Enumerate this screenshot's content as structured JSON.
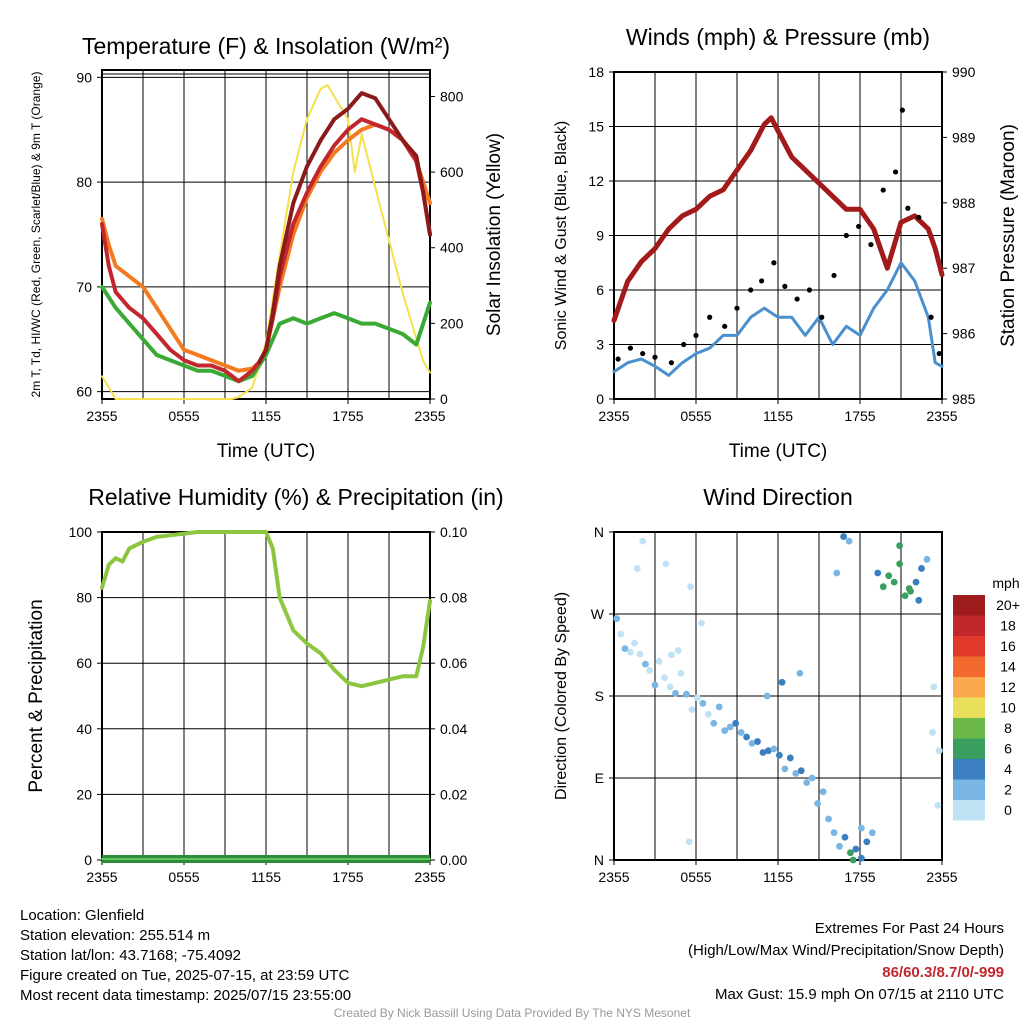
{
  "chart_data": [
    {
      "type": "line",
      "title": "Temperature (F) & Insolation (W/m²)",
      "xlabel": "Time (UTC)",
      "ylabel": "2m T, Td, HI/WC (Red, Green, Scarlet/Blue) & 9m T (Orange)",
      "y2label": "Solar Insolation (Yellow)",
      "x_tick_labels": [
        "2355",
        "0555",
        "1155",
        "1755",
        "2355"
      ],
      "xlim_hours": [
        0,
        24
      ],
      "ylim": [
        59.3,
        90.7
      ],
      "y_ticks": [
        60,
        70,
        80,
        90
      ],
      "y2lim": [
        0,
        870
      ],
      "y2_ticks": [
        0,
        200,
        400,
        600,
        800
      ],
      "grid": true,
      "colors": {
        "temp": "#c1272d",
        "heat_index": "#8b1a1a",
        "dewpoint": "#3aaa35",
        "temp9m": "#f47a20",
        "solar": "#f5e04a"
      },
      "series": [
        {
          "key": "temp",
          "x": [
            0,
            0.5,
            1,
            2,
            3,
            4,
            5,
            6,
            7,
            8,
            9,
            10,
            10.5,
            11,
            11.5,
            12,
            12.5,
            13,
            14,
            15,
            16,
            17,
            18,
            19,
            20,
            21,
            22,
            23,
            23.5,
            24
          ],
          "values": [
            76,
            72,
            69.5,
            68,
            67,
            65.5,
            64,
            63,
            62.5,
            62.5,
            62,
            61,
            61.5,
            62,
            62.8,
            64,
            67,
            71,
            76,
            79,
            81.5,
            83.5,
            85,
            86,
            85.5,
            85,
            84,
            82,
            79,
            75
          ]
        },
        {
          "key": "heat_index",
          "x": [
            11.5,
            12,
            12.5,
            13,
            14,
            15,
            16,
            17,
            18,
            19,
            20,
            21,
            22,
            23,
            23.5,
            24
          ],
          "values": [
            62.8,
            64,
            67.5,
            72,
            78,
            81.5,
            84,
            86,
            87,
            88.5,
            88,
            86,
            84,
            82.5,
            79,
            75
          ]
        },
        {
          "key": "temp9m",
          "x": [
            0,
            0.5,
            1,
            2,
            3,
            4,
            5,
            6,
            7,
            8,
            9,
            10,
            11,
            11.5,
            12,
            13,
            14,
            15,
            16,
            17,
            18,
            19,
            20,
            21,
            22,
            23,
            23.5,
            24
          ],
          "values": [
            76.5,
            74,
            72,
            71,
            70,
            68,
            66,
            64,
            63.5,
            63,
            62.5,
            62,
            62.2,
            62.8,
            64,
            70,
            75,
            78.5,
            81,
            82.8,
            84,
            85,
            85.5,
            85,
            84,
            82,
            80,
            78
          ]
        },
        {
          "key": "dewpoint",
          "x": [
            0,
            1,
            2,
            3,
            4,
            5,
            6,
            7,
            8,
            9,
            10,
            11,
            12,
            13,
            14,
            15,
            16,
            17,
            18,
            19,
            20,
            21,
            22,
            23,
            23.5,
            24
          ],
          "values": [
            70,
            68,
            66.5,
            65,
            63.5,
            63,
            62.5,
            62,
            62,
            61.5,
            61,
            61.5,
            63.5,
            66.5,
            67,
            66.5,
            67,
            67.5,
            67,
            66.5,
            66.5,
            66,
            65.5,
            64.5,
            66.5,
            68.5
          ]
        },
        {
          "key": "solar",
          "axis": "y2",
          "x": [
            0,
            1,
            2,
            3,
            4,
            5,
            6,
            7,
            8,
            9,
            9.5,
            10,
            11,
            12,
            13,
            14,
            15,
            16,
            16.5,
            17,
            18,
            18.5,
            19,
            20,
            21,
            22,
            23,
            23.5,
            24
          ],
          "values": [
            60,
            0,
            0,
            0,
            0,
            0,
            0,
            0,
            0,
            0,
            0,
            5,
            30,
            150,
            380,
            600,
            740,
            820,
            830,
            800,
            740,
            600,
            700,
            560,
            420,
            280,
            160,
            100,
            70
          ]
        }
      ]
    },
    {
      "type": "line",
      "title": "Winds (mph) & Pressure (mb)",
      "xlabel": "Time (UTC)",
      "ylabel": "Sonic Wind & Gust (Blue, Black)",
      "y2label": "Station Pressure (Maroon)",
      "x_tick_labels": [
        "2355",
        "0555",
        "1155",
        "1755",
        "2355"
      ],
      "xlim_hours": [
        0,
        24
      ],
      "ylim": [
        0,
        18
      ],
      "y_ticks": [
        0,
        3,
        6,
        9,
        12,
        15,
        18
      ],
      "y2lim": [
        985,
        990
      ],
      "y2_ticks": [
        985,
        986,
        987,
        988,
        989,
        990
      ],
      "grid": true,
      "colors": {
        "wind": "#4a90cf",
        "gust": "#000000",
        "pressure": "#a31a1a"
      },
      "series": [
        {
          "key": "pressure",
          "axis": "y2",
          "x": [
            0,
            0.5,
            1,
            2,
            3,
            4,
            5,
            6,
            7,
            8,
            9,
            10,
            11,
            11.5,
            12,
            13,
            14,
            15,
            16,
            17,
            18,
            19,
            20,
            21,
            22,
            23,
            23.5,
            24
          ],
          "values": [
            986.2,
            986.5,
            986.8,
            987.1,
            987.3,
            987.6,
            987.8,
            987.9,
            988.1,
            988.2,
            988.5,
            988.8,
            989.2,
            989.3,
            989.1,
            988.7,
            988.5,
            988.3,
            988.1,
            987.9,
            987.9,
            987.6,
            987.0,
            987.7,
            987.8,
            987.6,
            987.3,
            986.9
          ]
        },
        {
          "key": "wind",
          "x": [
            0,
            1,
            2,
            3,
            4,
            5,
            6,
            7,
            8,
            9,
            10,
            11,
            12,
            13,
            14,
            15,
            16,
            17,
            18,
            19,
            20,
            21,
            22,
            23,
            23.5,
            24
          ],
          "values": [
            1.5,
            2.0,
            2.2,
            1.8,
            1.3,
            2.0,
            2.5,
            2.8,
            3.5,
            3.5,
            4.5,
            5.0,
            4.5,
            4.5,
            3.5,
            4.5,
            3.0,
            4.0,
            3.5,
            5.0,
            6.0,
            7.5,
            6.5,
            4.5,
            2.0,
            1.8
          ]
        },
        {
          "key": "gust",
          "type": "scatter",
          "x": [
            0.3,
            1.2,
            2.1,
            3.0,
            4.2,
            5.1,
            6.0,
            7.0,
            8.1,
            9.0,
            10.0,
            10.8,
            11.7,
            12.5,
            13.4,
            14.3,
            15.2,
            16.1,
            17.0,
            17.9,
            18.8,
            19.7,
            20.6,
            21.1,
            21.5,
            22.3,
            23.2,
            23.8
          ],
          "values": [
            2.2,
            2.8,
            2.5,
            2.3,
            2.0,
            3.0,
            3.5,
            4.5,
            4.0,
            5.0,
            6.0,
            6.5,
            7.5,
            6.2,
            5.5,
            6.0,
            4.5,
            6.8,
            9.0,
            9.5,
            8.5,
            11.5,
            12.5,
            15.9,
            10.5,
            10.0,
            4.5,
            2.5
          ]
        }
      ]
    },
    {
      "type": "line",
      "title": "Relative Humidity (%) & Precipitation (in)",
      "ylabel": "Percent & Precipitation",
      "x_tick_labels": [
        "2355",
        "0555",
        "1155",
        "1755",
        "2355"
      ],
      "xlim_hours": [
        0,
        24
      ],
      "ylim": [
        0,
        100
      ],
      "y_ticks": [
        0,
        20,
        40,
        60,
        80,
        100
      ],
      "y2lim": [
        0,
        0.1
      ],
      "y2_ticks": [
        "0.00",
        "0.02",
        "0.04",
        "0.06",
        "0.08",
        "0.10"
      ],
      "grid": true,
      "colors": {
        "rh": "#8cc63f",
        "precip": "#2e8b3a"
      },
      "series": [
        {
          "key": "rh",
          "x": [
            0,
            0.5,
            1,
            1.5,
            2,
            3,
            4,
            5,
            6,
            7,
            8,
            9,
            10,
            11,
            12,
            12.5,
            13,
            14,
            15,
            16,
            17,
            18,
            19,
            20,
            21,
            22,
            23,
            23.5,
            24
          ],
          "values": [
            83,
            90,
            92,
            91,
            95,
            97,
            98.5,
            99,
            99.5,
            100,
            100,
            100,
            100,
            100,
            100,
            95,
            80,
            70,
            66,
            63,
            58,
            54,
            53,
            54,
            55,
            56,
            56,
            65,
            79
          ]
        },
        {
          "key": "precip",
          "axis": "y2",
          "x": [
            0,
            24
          ],
          "values": [
            0,
            0
          ]
        }
      ]
    },
    {
      "type": "scatter",
      "title": "Wind Direction",
      "ylabel": "Direction (Colored By Speed)",
      "x_tick_labels": [
        "2355",
        "0555",
        "1155",
        "1755",
        "2355"
      ],
      "xlim_hours": [
        0,
        24
      ],
      "ylim_deg": [
        0,
        360
      ],
      "y_tick_labels": [
        "N",
        "E",
        "S",
        "W",
        "N"
      ],
      "grid": true,
      "legend": {
        "title": "mph",
        "placement": "right",
        "labels": [
          "20+",
          "18",
          "16",
          "14",
          "12",
          "10",
          "8",
          "6",
          "4",
          "2",
          "0"
        ],
        "colors": [
          "#9e1b1e",
          "#c1272d",
          "#e0392b",
          "#f26a2f",
          "#fba94d",
          "#e8e05a",
          "#6cb84a",
          "#3a9e5e",
          "#3b7fc0",
          "#7ab6e3",
          "#bfe3f5"
        ]
      },
      "points": {
        "x": [
          0.2,
          0.5,
          0.8,
          1.2,
          1.5,
          1.9,
          2.3,
          2.6,
          3.0,
          3.3,
          3.7,
          4.1,
          4.5,
          4.9,
          5.3,
          5.7,
          6.1,
          6.5,
          6.9,
          7.3,
          7.7,
          8.1,
          8.5,
          8.9,
          9.3,
          9.7,
          10.1,
          10.5,
          10.9,
          11.3,
          11.7,
          12.1,
          12.5,
          12.9,
          13.3,
          13.7,
          14.1,
          14.5,
          14.9,
          15.3,
          15.7,
          16.1,
          16.5,
          16.9,
          17.3,
          17.7,
          18.1,
          18.5,
          18.9,
          19.3,
          19.7,
          20.1,
          20.5,
          20.9,
          21.3,
          21.7,
          22.1,
          22.5,
          22.9,
          23.3,
          23.7,
          2.1,
          3.8,
          5.6,
          6.4,
          1.7,
          16.3,
          16.8,
          17.2,
          20.9,
          21.6,
          22.3,
          17.5,
          18.1,
          5.5,
          23.4,
          23.8,
          4.2,
          4.7,
          11.2,
          12.3,
          13.6
        ],
        "deg": [
          265,
          248,
          232,
          228,
          238,
          226,
          215,
          208,
          192,
          218,
          200,
          190,
          183,
          205,
          182,
          165,
          178,
          172,
          160,
          150,
          168,
          142,
          146,
          150,
          140,
          135,
          128,
          130,
          118,
          120,
          122,
          115,
          100,
          112,
          95,
          98,
          85,
          90,
          62,
          75,
          45,
          30,
          15,
          25,
          8,
          12,
          35,
          20,
          30,
          315,
          300,
          312,
          305,
          325,
          290,
          295,
          305,
          320,
          330,
          140,
          60,
          350,
          325,
          300,
          260,
          320,
          315,
          355,
          350,
          345,
          298,
          285,
          0,
          2,
          20,
          190,
          120,
          225,
          230,
          180,
          195,
          205
        ],
        "mph": [
          2,
          1,
          2,
          1,
          0,
          1,
          2,
          1,
          2,
          1,
          0,
          1,
          2,
          1,
          2,
          1,
          1,
          2,
          1,
          2,
          3,
          2,
          3,
          4,
          3,
          4,
          3,
          4,
          5,
          4,
          3,
          4,
          3,
          4,
          3,
          4,
          2,
          3,
          2,
          3,
          2,
          3,
          2,
          4,
          6,
          4,
          3,
          4,
          3,
          5,
          6,
          7,
          6,
          7,
          6,
          6,
          5,
          4,
          3,
          1,
          1,
          1,
          1,
          1,
          0,
          0,
          3,
          4,
          3,
          7,
          6,
          5,
          6,
          5,
          1,
          1,
          0,
          1,
          1,
          3,
          4,
          3
        ]
      }
    }
  ],
  "footer": {
    "location": "Location: Glenfield",
    "elevation": "Station elevation: 255.514 m",
    "latlon": "Station lat/lon: 43.7168; -75.4092",
    "created": "Figure created on Tue, 2025-07-15, at 23:59 UTC",
    "recent": "Most recent data timestamp: 2025/07/15 23:55:00",
    "extremes_title": "Extremes For Past 24 Hours",
    "extremes_desc": "(High/Low/Max Wind/Precipitation/Snow Depth)",
    "extremes_values": "86/60.3/8.7/0/-999",
    "max_gust": "Max Gust: 15.9 mph On 07/15 at 2110 UTC",
    "credit": "Created By Nick Bassill Using Data Provided By The NYS Mesonet"
  }
}
